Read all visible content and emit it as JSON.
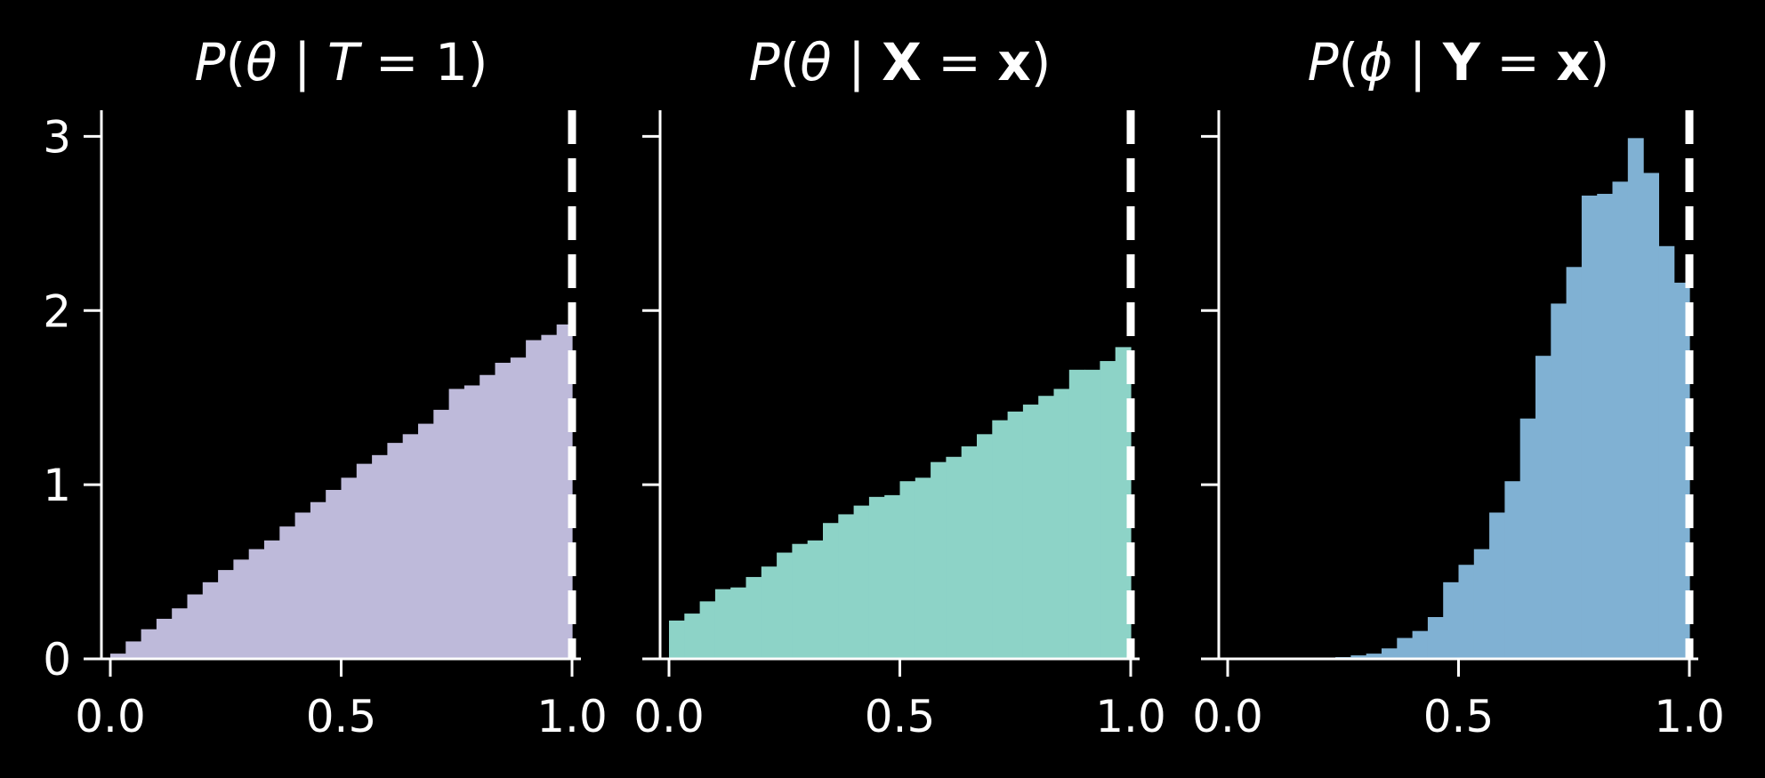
{
  "chart_data": [
    {
      "type": "bar",
      "title": "P(θ | T = 1)",
      "title_parts": {
        "lead": "P",
        "open": "(",
        "var": "θ",
        "bar": " | ",
        "lhs": "T",
        "eq": " = ",
        "rhs": "1",
        "close": ")"
      },
      "xlim": [
        0.0,
        1.0
      ],
      "ylim": [
        0,
        3
      ],
      "xticks": [
        "0.0",
        "0.5",
        "1.0"
      ],
      "yticks": [
        "0",
        "1",
        "2",
        "3"
      ],
      "bin_width": 0.0333,
      "color": "#bebada",
      "vline_x": 1.0,
      "values": [
        0.03,
        0.1,
        0.17,
        0.23,
        0.29,
        0.37,
        0.44,
        0.51,
        0.57,
        0.63,
        0.68,
        0.76,
        0.84,
        0.9,
        0.97,
        1.04,
        1.12,
        1.17,
        1.24,
        1.29,
        1.35,
        1.43,
        1.55,
        1.57,
        1.63,
        1.7,
        1.73,
        1.83,
        1.86,
        1.92
      ]
    },
    {
      "type": "bar",
      "title": "P(θ | X = x)",
      "title_parts": {
        "lead": "P",
        "open": "(",
        "var": "θ",
        "bar": " | ",
        "lhs": "X",
        "eq": " = ",
        "rhs": "x",
        "close": ")"
      },
      "xlim": [
        0.0,
        1.0
      ],
      "ylim": [
        0,
        3
      ],
      "xticks": [
        "0.0",
        "0.5",
        "1.0"
      ],
      "yticks": [
        "0",
        "1",
        "2",
        "3"
      ],
      "bin_width": 0.0333,
      "color": "#8dd3c7",
      "vline_x": 1.0,
      "values": [
        0.22,
        0.26,
        0.33,
        0.4,
        0.41,
        0.47,
        0.53,
        0.61,
        0.66,
        0.68,
        0.78,
        0.83,
        0.88,
        0.93,
        0.94,
        1.02,
        1.04,
        1.13,
        1.16,
        1.22,
        1.29,
        1.37,
        1.42,
        1.46,
        1.51,
        1.55,
        1.66,
        1.66,
        1.71,
        1.79
      ]
    },
    {
      "type": "bar",
      "title": "P(ϕ | Y = x)",
      "title_parts": {
        "lead": "P",
        "open": "(",
        "var": "ϕ",
        "bar": " | ",
        "lhs": "Y",
        "eq": " = ",
        "rhs": "x",
        "close": ")"
      },
      "xlim": [
        0.0,
        1.0
      ],
      "ylim": [
        0,
        3
      ],
      "xticks": [
        "0.0",
        "0.5",
        "1.0"
      ],
      "yticks": [
        "0",
        "1",
        "2",
        "3"
      ],
      "bin_width": 0.0333,
      "color": "#80b1d3",
      "vline_x": 1.0,
      "values": [
        0.0,
        0.0,
        0.0,
        0.0,
        0.0,
        0.0,
        0.0,
        0.01,
        0.02,
        0.03,
        0.06,
        0.12,
        0.16,
        0.24,
        0.44,
        0.54,
        0.63,
        0.84,
        1.02,
        1.38,
        1.74,
        2.04,
        2.25,
        2.66,
        2.67,
        2.74,
        2.99,
        2.79,
        2.37,
        2.16
      ]
    }
  ]
}
